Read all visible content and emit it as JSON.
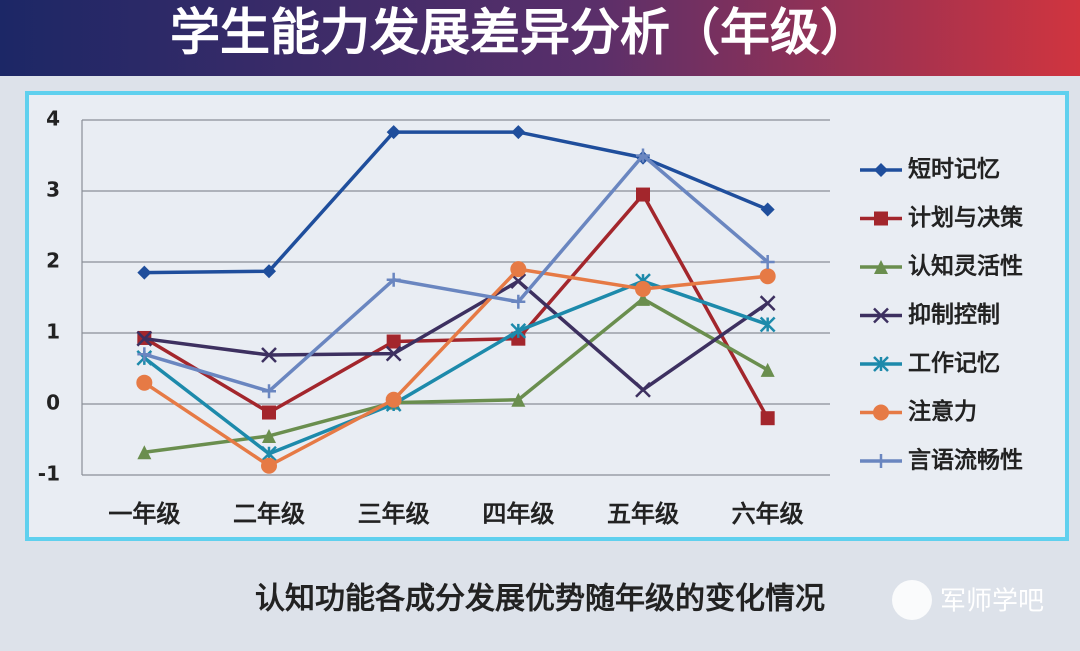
{
  "header": {
    "title": "学生能力发展差异分析（年级）"
  },
  "chart_data": {
    "type": "line",
    "categories": [
      "一年级",
      "二年级",
      "三年级",
      "四年级",
      "五年级",
      "六年级"
    ],
    "ylim": [
      -1,
      4
    ],
    "yticks": [
      -1,
      0,
      1,
      2,
      3,
      4
    ],
    "grid": true,
    "legend": "right",
    "series": [
      {
        "name": "短时记忆",
        "color": "#1f4e9c",
        "marker": "diamond",
        "values": [
          1.85,
          1.87,
          3.83,
          3.83,
          3.47,
          2.74
        ]
      },
      {
        "name": "计划与决策",
        "color": "#a3262c",
        "marker": "square",
        "values": [
          0.93,
          -0.12,
          0.88,
          0.92,
          2.95,
          -0.2
        ]
      },
      {
        "name": "认知灵活性",
        "color": "#6a8e4e",
        "marker": "triangle",
        "values": [
          -0.68,
          -0.45,
          0.02,
          0.06,
          1.48,
          0.48
        ]
      },
      {
        "name": "抑制控制",
        "color": "#3d3060",
        "marker": "x",
        "values": [
          0.92,
          0.69,
          0.71,
          1.73,
          0.2,
          1.42
        ]
      },
      {
        "name": "工作记忆",
        "color": "#1d8aab",
        "marker": "asterisk",
        "values": [
          0.65,
          -0.7,
          0.0,
          1.03,
          1.73,
          1.12
        ]
      },
      {
        "name": "注意力",
        "color": "#e67a45",
        "marker": "circle",
        "values": [
          0.3,
          -0.87,
          0.06,
          1.9,
          1.62,
          1.8
        ]
      },
      {
        "name": "言语流畅性",
        "color": "#6a86c0",
        "marker": "plus",
        "values": [
          0.7,
          0.18,
          1.75,
          1.44,
          3.5,
          2.0
        ]
      }
    ]
  },
  "caption": "认知功能各成分发展优势随年级的变化情况",
  "watermark": "军师学吧"
}
